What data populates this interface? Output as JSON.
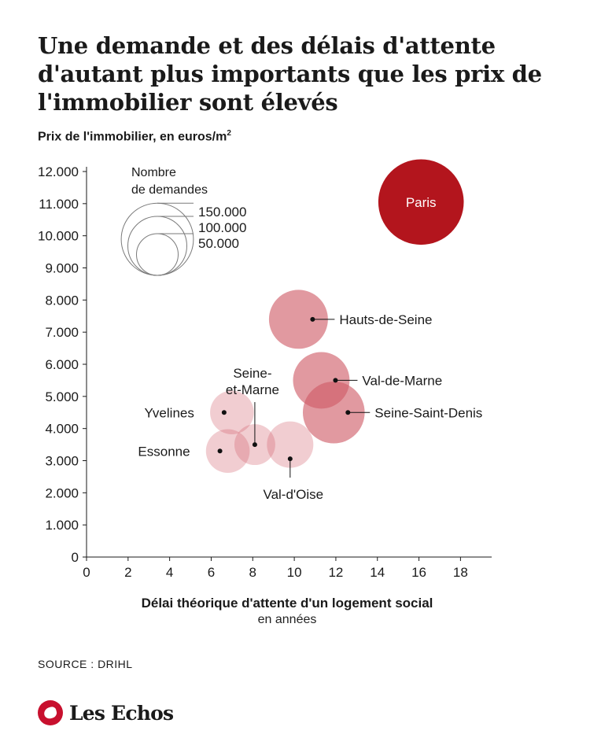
{
  "title": "Une demande et des délais d'attente d'autant plus importants que les prix de l'immobilier sont élevés",
  "subtitle_text": "Prix de l'immobilier, en euros/m",
  "subtitle_sup": "2",
  "source": "SOURCE : DRIHL",
  "brand": "Les Echos",
  "colors": {
    "accent": "#b3151d",
    "bubble": "#cf5b66",
    "axis": "#1a1a1a"
  },
  "chart_data": {
    "type": "scatter",
    "title": "Une demande et des délais d'attente d'autant plus importants que les prix de l'immobilier sont élevés",
    "ylabel": "Prix de l'immobilier, en euros/m²",
    "xlabel": "Délai théorique d'attente d'un logement social",
    "xlabel_sub": "en années",
    "xlim": [
      0,
      19.5
    ],
    "ylim": [
      0,
      12000
    ],
    "x_ticks": [
      0,
      2,
      4,
      6,
      8,
      10,
      12,
      14,
      16,
      18
    ],
    "y_ticks": [
      0,
      1000,
      2000,
      3000,
      4000,
      5000,
      6000,
      7000,
      8000,
      9000,
      10000,
      11000,
      12000
    ],
    "y_tick_labels": [
      "0",
      "1.000",
      "2.000",
      "3.000",
      "4.000",
      "5.000",
      "6.000",
      "7.000",
      "8.000",
      "9.000",
      "10.000",
      "11.000",
      "12.000"
    ],
    "grid": false,
    "size_legend": {
      "title_line1": "Nombre",
      "title_line2": "de demandes",
      "placement": "top-left",
      "entries": [
        {
          "label": "150.000",
          "value": 150000
        },
        {
          "label": "100.000",
          "value": 100000
        },
        {
          "label": "50.000",
          "value": 50000
        }
      ]
    },
    "points": [
      {
        "name": "Paris",
        "x": 16.1,
        "y": 11050,
        "demandes": 210000,
        "opacity": 1.0,
        "label_inside": true
      },
      {
        "name": "Hauts-de-Seine",
        "x": 10.2,
        "y": 7400,
        "demandes": 100000,
        "opacity": 0.62,
        "label_side": "right",
        "label_lines": [
          "Hauts-de-Seine"
        ]
      },
      {
        "name": "Val-de-Marne",
        "x": 11.3,
        "y": 5500,
        "demandes": 92000,
        "opacity": 0.62,
        "label_side": "right",
        "label_lines": [
          "Val-de-Marne"
        ]
      },
      {
        "name": "Seine-Saint-Denis",
        "x": 11.9,
        "y": 4500,
        "demandes": 110000,
        "opacity": 0.62,
        "label_side": "right",
        "label_lines": [
          "Seine-Saint-Denis"
        ]
      },
      {
        "name": "Yvelines",
        "x": 7.0,
        "y": 4500,
        "demandes": 55000,
        "opacity": 0.3,
        "label_side": "left",
        "label_lines": [
          "Yvelines"
        ]
      },
      {
        "name": "Essonne",
        "x": 6.8,
        "y": 3300,
        "demandes": 55000,
        "opacity": 0.3,
        "label_side": "left",
        "label_lines": [
          "Essonne"
        ]
      },
      {
        "name": "Seine-et-Marne",
        "x": 8.1,
        "y": 3500,
        "demandes": 48000,
        "opacity": 0.3,
        "label_side": "top",
        "label_lines": [
          "Seine-",
          "et-Marne"
        ]
      },
      {
        "name": "Val-d'Oise",
        "x": 9.8,
        "y": 3500,
        "demandes": 62000,
        "opacity": 0.3,
        "label_side": "bottom",
        "label_lines": [
          "Val-d'Oise"
        ]
      }
    ]
  }
}
